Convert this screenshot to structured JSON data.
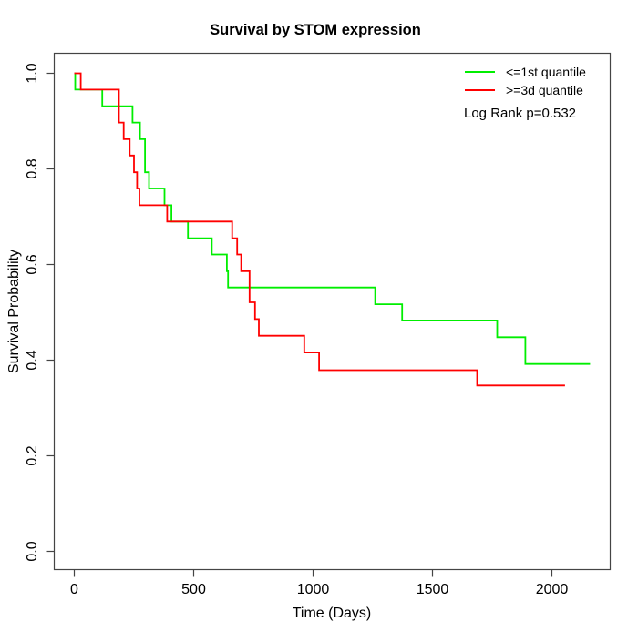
{
  "title": "Survival by STOM expression",
  "x_axis": {
    "label": "Time (Days)",
    "tick_labels": [
      "0",
      "500",
      "1000",
      "1500",
      "2000"
    ],
    "tick_values": [
      0,
      500,
      1000,
      1500,
      2000
    ]
  },
  "y_axis": {
    "label": "Survival Probability",
    "tick_labels": [
      "0.0",
      "0.2",
      "0.4",
      "0.6",
      "0.8",
      "1.0"
    ],
    "tick_values": [
      0.0,
      0.2,
      0.4,
      0.6,
      0.8,
      1.0
    ]
  },
  "legend": {
    "items": [
      {
        "label": "<=1st quantile",
        "color": "#00ee00"
      },
      {
        "label": ">=3d quantile",
        "color": "#ff0000"
      }
    ],
    "log_rank": "Log Rank p=0.532"
  },
  "chart_data": {
    "type": "line",
    "subtype": "kaplan-meier-step",
    "title": "Survival by STOM expression",
    "xlabel": "Time (Days)",
    "ylabel": "Survival Probability",
    "xlim": [
      -87,
      2253
    ],
    "ylim": [
      -0.04,
      1.04
    ],
    "x_ticks": [
      0,
      500,
      1000,
      1500,
      2000
    ],
    "y_ticks": [
      0.0,
      0.2,
      0.4,
      0.6,
      0.8,
      1.0
    ],
    "grid": false,
    "legend_position": "top-right",
    "annotation": "Log Rank p=0.532",
    "series": [
      {
        "name": "<=1st quantile",
        "color": "#00ee00",
        "start": [
          0,
          1.0
        ],
        "steps": [
          [
            4,
            0.966
          ],
          [
            117,
            0.931
          ],
          [
            244,
            0.897
          ],
          [
            275,
            0.862
          ],
          [
            296,
            0.793
          ],
          [
            313,
            0.759
          ],
          [
            378,
            0.724
          ],
          [
            407,
            0.69
          ],
          [
            476,
            0.655
          ],
          [
            576,
            0.621
          ],
          [
            639,
            0.586
          ],
          [
            644,
            0.552
          ],
          [
            1260,
            0.517
          ],
          [
            1373,
            0.483
          ],
          [
            1771,
            0.448
          ],
          [
            1889,
            0.392
          ]
        ],
        "end_time": 2160
      },
      {
        "name": ">=3d quantile",
        "color": "#ff0000",
        "start": [
          0,
          1.0
        ],
        "steps": [
          [
            27,
            0.966
          ],
          [
            187,
            0.897
          ],
          [
            207,
            0.862
          ],
          [
            232,
            0.828
          ],
          [
            250,
            0.793
          ],
          [
            263,
            0.759
          ],
          [
            273,
            0.724
          ],
          [
            389,
            0.69
          ],
          [
            661,
            0.655
          ],
          [
            682,
            0.621
          ],
          [
            699,
            0.586
          ],
          [
            734,
            0.521
          ],
          [
            757,
            0.486
          ],
          [
            773,
            0.451
          ],
          [
            963,
            0.416
          ],
          [
            1025,
            0.379
          ],
          [
            1687,
            0.347
          ]
        ],
        "end_time": 2055
      }
    ]
  },
  "colors": {
    "axis": "#444444",
    "text": "#000000",
    "background": "#ffffff"
  }
}
